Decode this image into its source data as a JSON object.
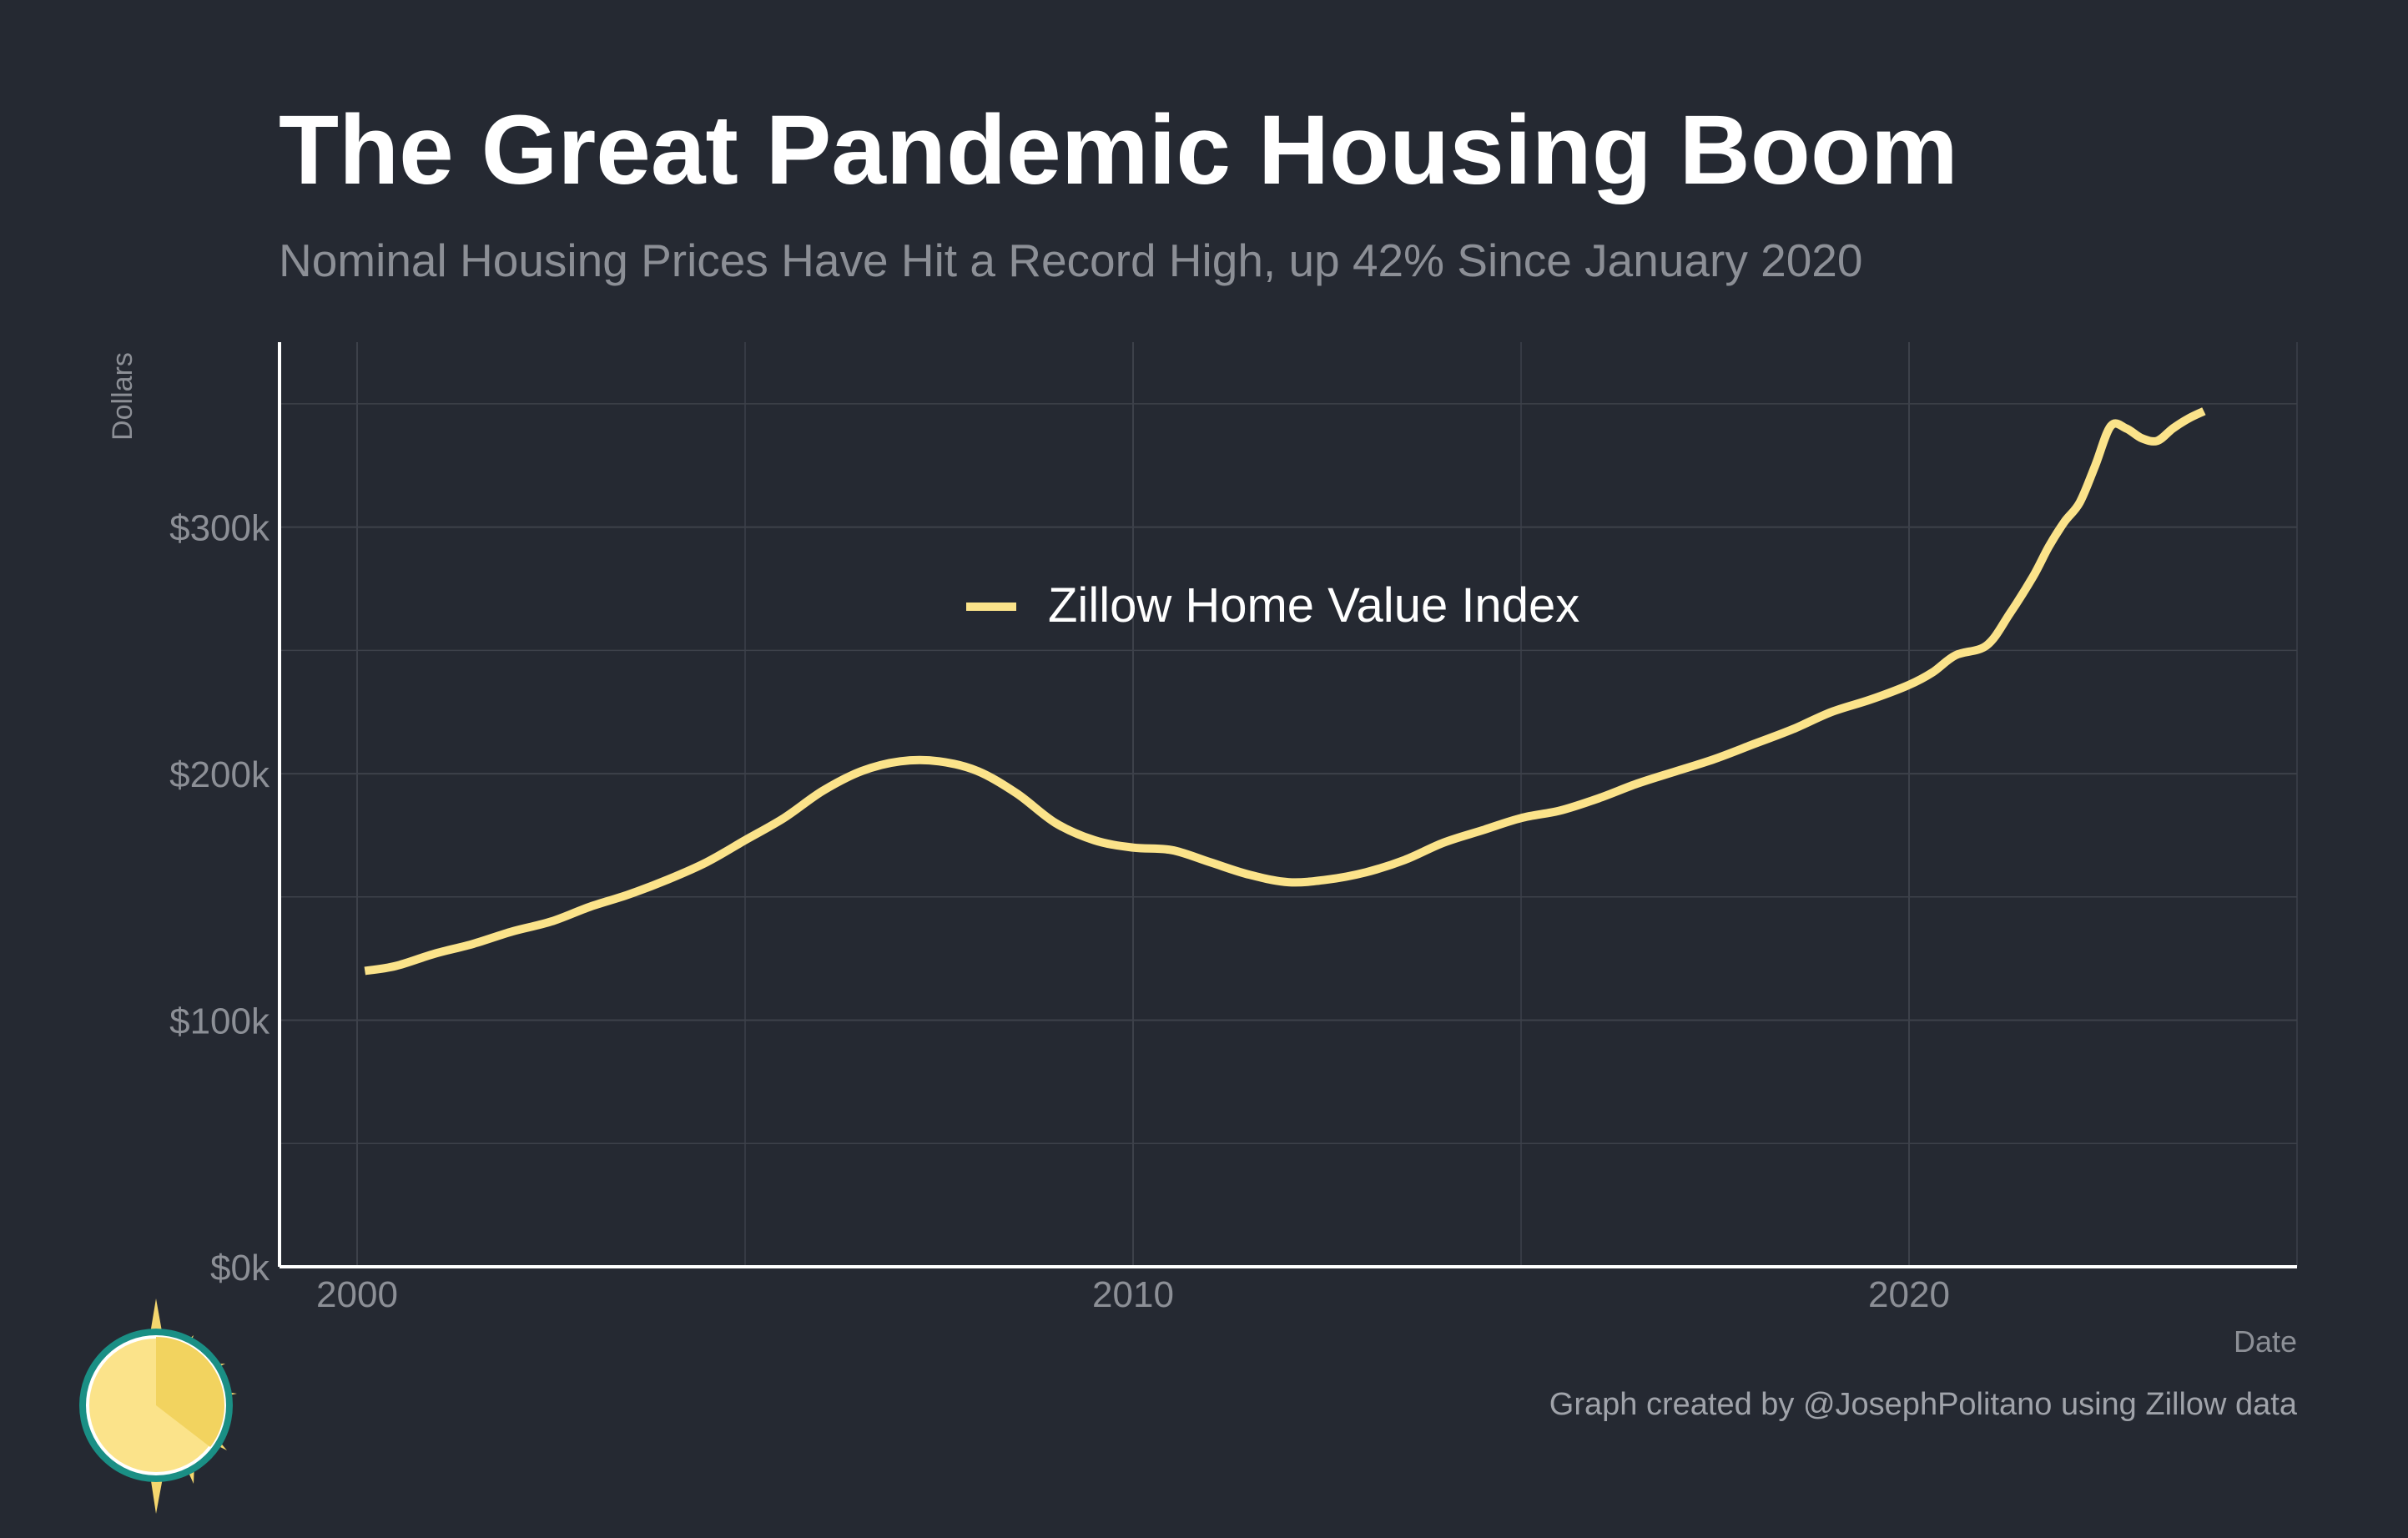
{
  "title": "The Great Pandemic Housing Boom",
  "subtitle": "Nominal Housing Prices Have Hit a Record High, up 42% Since January 2020",
  "caption": "Graph created by @JosephPolitano using Zillow data",
  "colors": {
    "background": "#252932",
    "line": "#fbe38a",
    "grid": "#3d414a",
    "axis": "#ffffff",
    "muted_text": "#8c8f96"
  },
  "icons": {
    "logo": "sun-logo-icon"
  },
  "chart_data": {
    "type": "line",
    "title": "The Great Pandemic Housing Boom",
    "xlabel": "Date",
    "ylabel": "Dollars",
    "xlim": [
      1999,
      2025
    ],
    "ylim": [
      0,
      375000
    ],
    "x_ticks": [
      2000,
      2010,
      2020
    ],
    "x_tick_labels": [
      "2000",
      "2010",
      "2020"
    ],
    "y_ticks": [
      0,
      100000,
      200000,
      300000
    ],
    "y_tick_labels": [
      "$0k",
      "$100k",
      "$200k",
      "$300k"
    ],
    "grid": true,
    "legend": {
      "position": "center",
      "entries": [
        "Zillow Home Value Index"
      ]
    },
    "series": [
      {
        "name": "Zillow Home Value Index",
        "x": [
          2000.1,
          2000.5,
          2001.0,
          2001.5,
          2002.0,
          2002.5,
          2003.0,
          2003.5,
          2004.0,
          2004.5,
          2005.0,
          2005.5,
          2006.0,
          2006.5,
          2007.0,
          2007.5,
          2008.0,
          2008.5,
          2009.0,
          2009.5,
          2010.0,
          2010.5,
          2011.0,
          2011.5,
          2012.0,
          2012.5,
          2013.0,
          2013.5,
          2014.0,
          2014.5,
          2015.0,
          2015.5,
          2016.0,
          2016.5,
          2017.0,
          2017.5,
          2018.0,
          2018.5,
          2019.0,
          2019.5,
          2020.0,
          2020.3,
          2020.6,
          2021.0,
          2021.3,
          2021.6,
          2021.8,
          2022.0,
          2022.2,
          2022.4,
          2022.6,
          2022.8,
          2023.0,
          2023.2,
          2023.4,
          2023.6,
          2023.8
        ],
        "values": [
          120000,
          122000,
          127000,
          131000,
          136000,
          140000,
          146000,
          151000,
          157000,
          164000,
          173000,
          182000,
          193000,
          201000,
          205000,
          205000,
          201000,
          192000,
          180000,
          173000,
          170000,
          169000,
          164000,
          159000,
          156000,
          157000,
          160000,
          165000,
          172000,
          177000,
          182000,
          185000,
          190000,
          196000,
          201000,
          206000,
          212000,
          218000,
          225000,
          230000,
          236000,
          241000,
          248000,
          252000,
          265000,
          280000,
          292000,
          302000,
          310000,
          325000,
          341000,
          340000,
          336000,
          335000,
          340000,
          344000,
          347000
        ]
      }
    ]
  }
}
